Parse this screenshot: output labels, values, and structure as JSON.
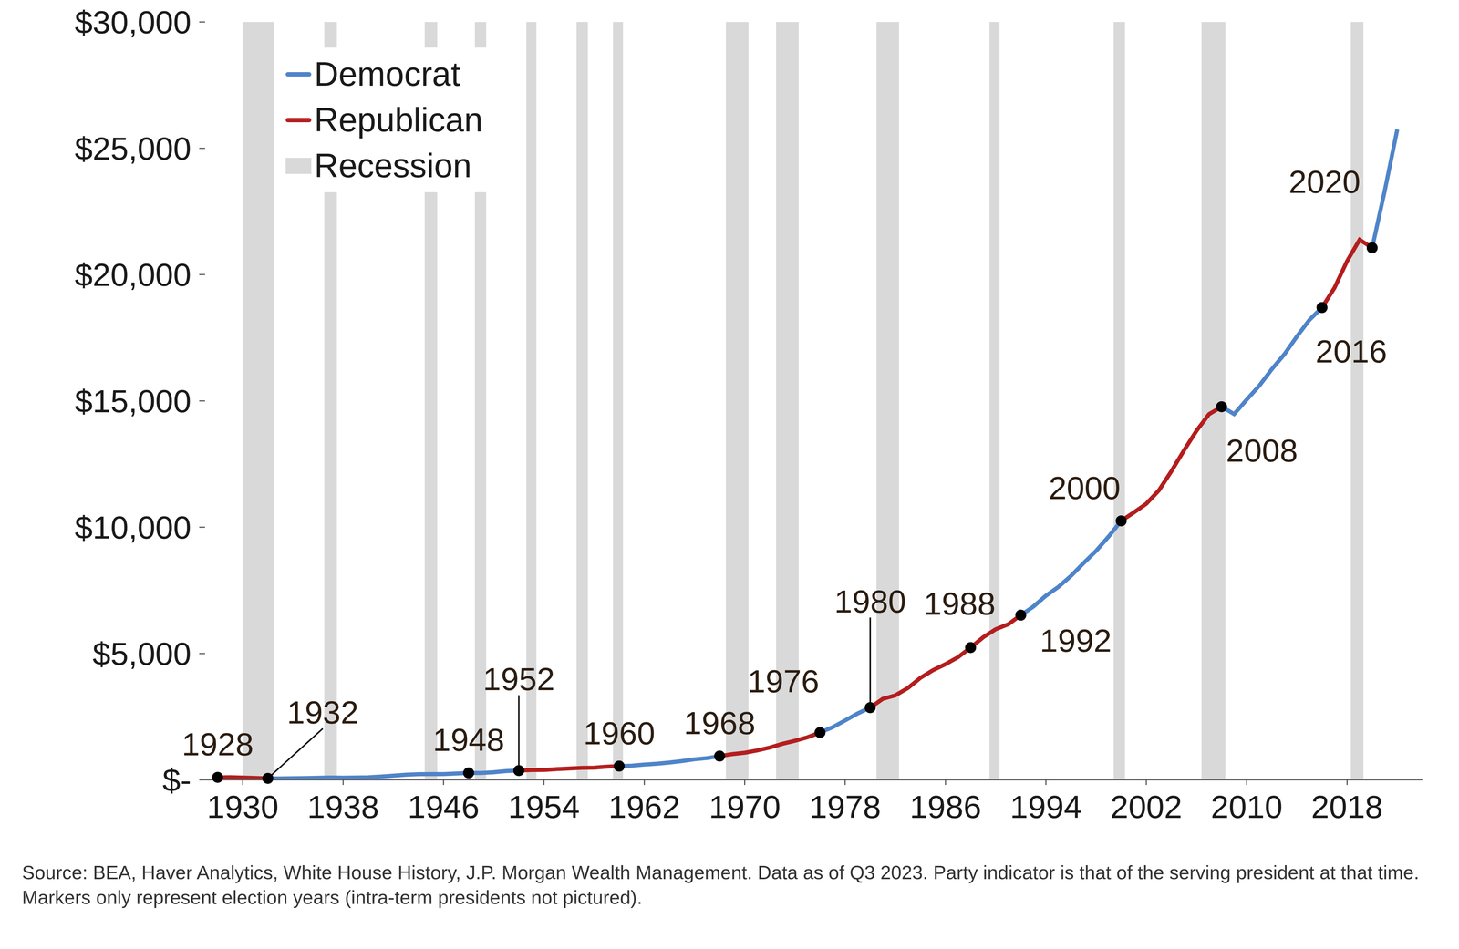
{
  "chart_data": {
    "type": "line",
    "x": [
      1928,
      1929,
      1930,
      1931,
      1932,
      1933,
      1934,
      1935,
      1936,
      1937,
      1938,
      1939,
      1940,
      1941,
      1942,
      1943,
      1944,
      1945,
      1946,
      1947,
      1948,
      1949,
      1950,
      1951,
      1952,
      1953,
      1954,
      1955,
      1956,
      1957,
      1958,
      1959,
      1960,
      1961,
      1962,
      1963,
      1964,
      1965,
      1966,
      1967,
      1968,
      1969,
      1970,
      1971,
      1972,
      1973,
      1974,
      1975,
      1976,
      1977,
      1978,
      1979,
      1980,
      1981,
      1982,
      1983,
      1984,
      1985,
      1986,
      1987,
      1988,
      1989,
      1990,
      1991,
      1992,
      1993,
      1994,
      1995,
      1996,
      1997,
      1998,
      1999,
      2000,
      2001,
      2002,
      2003,
      2004,
      2005,
      2006,
      2007,
      2008,
      2009,
      2010,
      2011,
      2012,
      2013,
      2014,
      2015,
      2016,
      2017,
      2018,
      2019,
      2020,
      2021,
      2022
    ],
    "series": [
      {
        "name": "Democrat",
        "color": "#4f84c9",
        "values": [
          null,
          null,
          null,
          null,
          59.5,
          57.2,
          66.8,
          74.2,
          84.8,
          93.0,
          87.4,
          93.4,
          102.9,
          129.3,
          166.0,
          203.1,
          224.4,
          228.0,
          227.5,
          249.6,
          274.5,
          272.5,
          299.8,
          346.9,
          367.3,
          null,
          null,
          null,
          null,
          null,
          null,
          null,
          542.4,
          562.2,
          603.9,
          637.5,
          684.5,
          742.3,
          813.4,
          860.0,
          940.7,
          null,
          null,
          null,
          null,
          null,
          null,
          null,
          1873.4,
          2081.8,
          2351.6,
          2627.3,
          2857.3,
          null,
          null,
          null,
          null,
          null,
          null,
          null,
          null,
          null,
          null,
          null,
          6520.3,
          6858.6,
          7287.2,
          7639.7,
          8073.1,
          8577.6,
          9062.8,
          9631.2,
          10251.0,
          null,
          null,
          null,
          null,
          null,
          null,
          null,
          14769.9,
          14478.1,
          15049.0,
          15599.7,
          16254.0,
          16843.2,
          17550.7,
          18206.0,
          18695.1,
          null,
          null,
          null,
          21060.5,
          23315.1,
          25744.1
        ]
      },
      {
        "name": "Republican",
        "color": "#b41e1e",
        "values": [
          98.2,
          104.6,
          92.2,
          77.4,
          59.5,
          null,
          null,
          null,
          null,
          null,
          null,
          null,
          null,
          null,
          null,
          null,
          null,
          null,
          null,
          null,
          null,
          null,
          null,
          null,
          367.3,
          389.2,
          390.5,
          425.5,
          449.4,
          474.0,
          481.2,
          521.7,
          542.4,
          null,
          null,
          null,
          null,
          null,
          null,
          null,
          940.7,
          1017.6,
          1073.3,
          1164.9,
          1279.1,
          1425.4,
          1545.2,
          1684.9,
          1873.4,
          null,
          null,
          null,
          2857.3,
          3207.0,
          3343.8,
          3634.0,
          4037.6,
          4339.0,
          4579.6,
          4855.2,
          5236.4,
          5641.6,
          5963.1,
          6158.1,
          6520.3,
          null,
          null,
          null,
          null,
          null,
          null,
          null,
          10251.0,
          10581.9,
          10929.1,
          11456.4,
          12217.2,
          13039.2,
          13815.6,
          14474.2,
          14769.9,
          null,
          null,
          null,
          null,
          null,
          null,
          null,
          18695.1,
          19477.3,
          20533.1,
          21381.0,
          21060.5,
          null,
          null
        ]
      }
    ],
    "recessions": {
      "name": "Recession",
      "color": "#d9d9d9",
      "ranges": [
        [
          1930.0,
          1932.5
        ],
        [
          1936.5,
          1937.5
        ],
        [
          1944.5,
          1945.5
        ],
        [
          1948.5,
          1949.4
        ],
        [
          1952.6,
          1953.4
        ],
        [
          1956.6,
          1957.5
        ],
        [
          1959.5,
          1960.3
        ],
        [
          1968.5,
          1970.3
        ],
        [
          1972.5,
          1974.3
        ],
        [
          1980.5,
          1982.3
        ],
        [
          1989.5,
          1990.3
        ],
        [
          1999.4,
          2000.3
        ],
        [
          2006.4,
          2008.3
        ],
        [
          2018.3,
          2019.3
        ]
      ]
    },
    "election_years": [
      1928,
      1932,
      1948,
      1952,
      1960,
      1968,
      1976,
      1980,
      1988,
      1992,
      2000,
      2008,
      2016,
      2020
    ],
    "xlim": [
      1927,
      2024
    ],
    "xticks": [
      1930,
      1938,
      1946,
      1954,
      1962,
      1970,
      1978,
      1986,
      1994,
      2002,
      2010,
      2018
    ],
    "ylim": [
      0,
      30000
    ],
    "yticks": [
      {
        "value": 0,
        "label": "$-"
      },
      {
        "value": 5000,
        "label": "$5,000"
      },
      {
        "value": 10000,
        "label": "$10,000"
      },
      {
        "value": 15000,
        "label": "$15,000"
      },
      {
        "value": 20000,
        "label": "$20,000"
      },
      {
        "value": 25000,
        "label": "$25,000"
      },
      {
        "value": 30000,
        "label": "$30,000"
      }
    ],
    "legend": "top-left",
    "note": "Source: BEA, Haver Analytics, White House History, J.P. Morgan Wealth Management. Data as of Q3 2023. Party indicator is that of the serving president at that time. Markers only represent election years (intra-term presidents not pictured)."
  }
}
